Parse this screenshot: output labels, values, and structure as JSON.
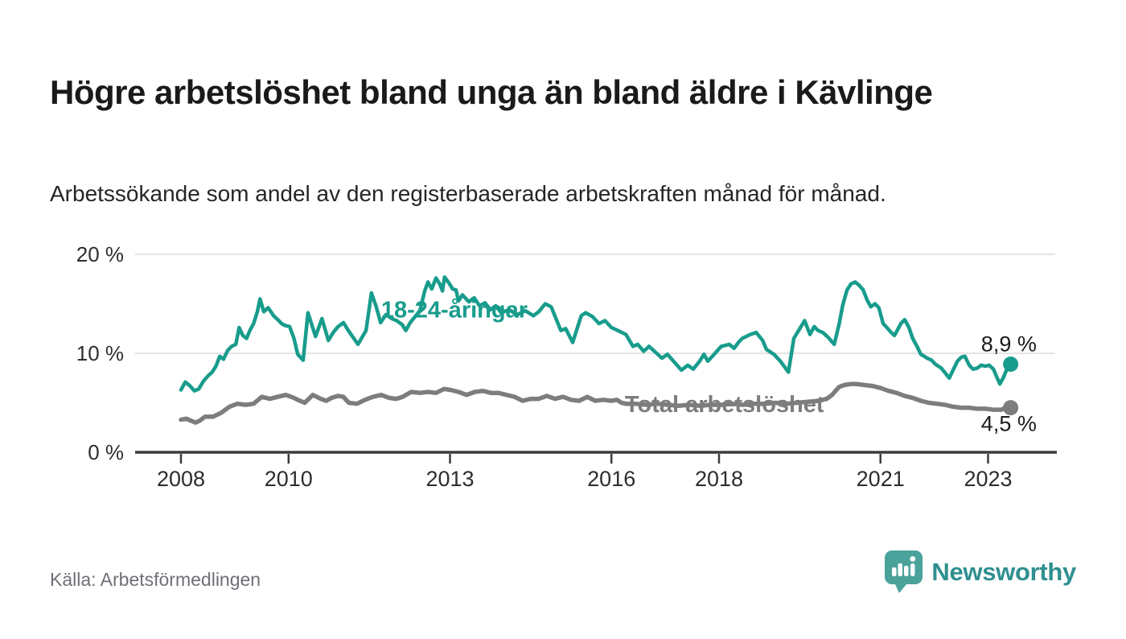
{
  "header": {
    "title": "Högre arbetslöshet bland unga än bland äldre i Kävlinge",
    "subtitle": "Arbetssökande som andel av den registerbaserade arbetskraften månad för månad."
  },
  "footer": {
    "source": "Källa: Arbetsförmedlingen",
    "brand": "Newsworthy"
  },
  "colors": {
    "youth": "#189c8c",
    "total": "#7d7d7d",
    "axis": "#3c3c3c",
    "grid": "#e4e4e4",
    "tick_text": "#2d2d2d",
    "annotation_text": "#1c1c1c",
    "logo_bubble": "#4ba29b",
    "logo_text": "#2f8f8f"
  },
  "chart_data": {
    "type": "line",
    "unit": "%",
    "x_axis": {
      "ticks": [
        {
          "v": 2008,
          "label": "2008"
        },
        {
          "v": 2010,
          "label": "2010"
        },
        {
          "v": 2013,
          "label": "2013"
        },
        {
          "v": 2016,
          "label": "2016"
        },
        {
          "v": 2018,
          "label": "2018"
        },
        {
          "v": 2021,
          "label": "2021"
        },
        {
          "v": 2023,
          "label": "2023"
        }
      ],
      "range": [
        2007.15,
        2024.25
      ]
    },
    "y_axis": {
      "ticks": [
        {
          "v": 0,
          "label": "0 %"
        },
        {
          "v": 10,
          "label": "10 %"
        },
        {
          "v": 20,
          "label": "20 %"
        }
      ],
      "range": [
        0,
        21.5
      ]
    },
    "legend_position": "inline-labels",
    "grid": "horizontal-only",
    "series": [
      {
        "id": "total",
        "name": "Total arbetslöshet",
        "color": "#7d7d7d",
        "stroke_width": 5.5,
        "end_label": "4,5 %",
        "end_value": 4.5,
        "label_pos": {
          "x": 2016.25,
          "y": 4.05
        },
        "end_label_pos": {
          "x": 2022.87,
          "y": 2.15
        },
        "points": [
          [
            2008.0,
            3.3
          ],
          [
            2008.1,
            3.4
          ],
          [
            2008.18,
            3.2
          ],
          [
            2008.27,
            3.0
          ],
          [
            2008.35,
            3.2
          ],
          [
            2008.45,
            3.6
          ],
          [
            2008.6,
            3.6
          ],
          [
            2008.75,
            4.0
          ],
          [
            2008.9,
            4.6
          ],
          [
            2009.05,
            4.9
          ],
          [
            2009.2,
            4.8
          ],
          [
            2009.35,
            4.9
          ],
          [
            2009.5,
            5.6
          ],
          [
            2009.65,
            5.4
          ],
          [
            2009.8,
            5.6
          ],
          [
            2009.95,
            5.8
          ],
          [
            2010.1,
            5.5
          ],
          [
            2010.17,
            5.3
          ],
          [
            2010.3,
            5.0
          ],
          [
            2010.45,
            5.8
          ],
          [
            2010.6,
            5.4
          ],
          [
            2010.7,
            5.2
          ],
          [
            2010.8,
            5.5
          ],
          [
            2010.92,
            5.7
          ],
          [
            2011.02,
            5.6
          ],
          [
            2011.12,
            5.0
          ],
          [
            2011.27,
            4.9
          ],
          [
            2011.42,
            5.3
          ],
          [
            2011.57,
            5.6
          ],
          [
            2011.72,
            5.8
          ],
          [
            2011.87,
            5.5
          ],
          [
            2012.0,
            5.4
          ],
          [
            2012.12,
            5.6
          ],
          [
            2012.28,
            6.1
          ],
          [
            2012.44,
            6.0
          ],
          [
            2012.59,
            6.1
          ],
          [
            2012.74,
            6.0
          ],
          [
            2012.89,
            6.4
          ],
          [
            2013.01,
            6.3
          ],
          [
            2013.16,
            6.1
          ],
          [
            2013.31,
            5.8
          ],
          [
            2013.46,
            6.1
          ],
          [
            2013.61,
            6.2
          ],
          [
            2013.76,
            6.0
          ],
          [
            2013.9,
            6.0
          ],
          [
            2014.05,
            5.8
          ],
          [
            2014.2,
            5.6
          ],
          [
            2014.35,
            5.2
          ],
          [
            2014.5,
            5.4
          ],
          [
            2014.65,
            5.4
          ],
          [
            2014.8,
            5.7
          ],
          [
            2014.95,
            5.4
          ],
          [
            2015.1,
            5.6
          ],
          [
            2015.25,
            5.3
          ],
          [
            2015.4,
            5.2
          ],
          [
            2015.55,
            5.6
          ],
          [
            2015.7,
            5.2
          ],
          [
            2015.85,
            5.3
          ],
          [
            2016.0,
            5.2
          ],
          [
            2016.1,
            5.3
          ],
          [
            2016.19,
            5.0
          ],
          [
            2016.27,
            4.9
          ],
          [
            2016.45,
            4.9
          ],
          [
            2016.65,
            4.8
          ],
          [
            2016.85,
            4.9
          ],
          [
            2017.05,
            4.8
          ],
          [
            2017.25,
            4.7
          ],
          [
            2017.45,
            4.8
          ],
          [
            2017.65,
            4.7
          ],
          [
            2017.85,
            4.8
          ],
          [
            2018.05,
            4.8
          ],
          [
            2018.25,
            4.9
          ],
          [
            2018.45,
            4.8
          ],
          [
            2018.65,
            4.9
          ],
          [
            2018.85,
            4.9
          ],
          [
            2019.05,
            5.0
          ],
          [
            2019.25,
            4.9
          ],
          [
            2019.45,
            5.0
          ],
          [
            2019.65,
            5.1
          ],
          [
            2019.85,
            5.2
          ],
          [
            2020.0,
            5.4
          ],
          [
            2020.1,
            5.8
          ],
          [
            2020.23,
            6.6
          ],
          [
            2020.33,
            6.8
          ],
          [
            2020.45,
            6.9
          ],
          [
            2020.55,
            6.9
          ],
          [
            2020.7,
            6.8
          ],
          [
            2020.85,
            6.7
          ],
          [
            2021.0,
            6.5
          ],
          [
            2021.15,
            6.2
          ],
          [
            2021.3,
            6.0
          ],
          [
            2021.45,
            5.7
          ],
          [
            2021.6,
            5.5
          ],
          [
            2021.75,
            5.2
          ],
          [
            2021.9,
            5.0
          ],
          [
            2022.05,
            4.9
          ],
          [
            2022.2,
            4.8
          ],
          [
            2022.35,
            4.6
          ],
          [
            2022.5,
            4.5
          ],
          [
            2022.65,
            4.5
          ],
          [
            2022.8,
            4.4
          ],
          [
            2022.95,
            4.4
          ],
          [
            2023.1,
            4.3
          ],
          [
            2023.25,
            4.3
          ],
          [
            2023.35,
            4.6
          ],
          [
            2023.42,
            4.5
          ]
        ]
      },
      {
        "id": "youth",
        "name": "18-24-åringar",
        "color": "#189c8c",
        "stroke_width": 4.5,
        "end_label": "8,9 %",
        "end_value": 8.9,
        "label_pos": {
          "x": 2011.72,
          "y": 13.6
        },
        "end_label_pos": {
          "x": 2022.87,
          "y": 10.2
        },
        "points": [
          [
            2008.0,
            6.3
          ],
          [
            2008.08,
            7.1
          ],
          [
            2008.17,
            6.7
          ],
          [
            2008.25,
            6.2
          ],
          [
            2008.33,
            6.4
          ],
          [
            2008.42,
            7.2
          ],
          [
            2008.5,
            7.7
          ],
          [
            2008.58,
            8.1
          ],
          [
            2008.65,
            8.7
          ],
          [
            2008.72,
            9.7
          ],
          [
            2008.79,
            9.4
          ],
          [
            2008.87,
            10.3
          ],
          [
            2008.94,
            10.7
          ],
          [
            2009.02,
            10.9
          ],
          [
            2009.08,
            12.6
          ],
          [
            2009.15,
            11.8
          ],
          [
            2009.22,
            11.5
          ],
          [
            2009.28,
            12.3
          ],
          [
            2009.35,
            13.0
          ],
          [
            2009.42,
            14.2
          ],
          [
            2009.47,
            15.5
          ],
          [
            2009.54,
            14.2
          ],
          [
            2009.62,
            14.6
          ],
          [
            2009.72,
            13.8
          ],
          [
            2009.8,
            13.4
          ],
          [
            2009.87,
            13.0
          ],
          [
            2009.94,
            12.8
          ],
          [
            2010.02,
            12.7
          ],
          [
            2010.1,
            11.5
          ],
          [
            2010.17,
            9.9
          ],
          [
            2010.27,
            9.3
          ],
          [
            2010.36,
            14.1
          ],
          [
            2010.5,
            11.7
          ],
          [
            2010.62,
            13.5
          ],
          [
            2010.74,
            11.3
          ],
          [
            2010.83,
            12.1
          ],
          [
            2010.92,
            12.7
          ],
          [
            2011.02,
            13.1
          ],
          [
            2011.11,
            12.3
          ],
          [
            2011.29,
            10.9
          ],
          [
            2011.44,
            12.3
          ],
          [
            2011.54,
            16.1
          ],
          [
            2011.63,
            14.7
          ],
          [
            2011.71,
            13.1
          ],
          [
            2011.81,
            13.9
          ],
          [
            2011.92,
            13.5
          ],
          [
            2012.01,
            13.3
          ],
          [
            2012.11,
            12.9
          ],
          [
            2012.18,
            12.3
          ],
          [
            2012.26,
            13.1
          ],
          [
            2012.35,
            13.7
          ],
          [
            2012.44,
            14.3
          ],
          [
            2012.53,
            16.3
          ],
          [
            2012.59,
            17.2
          ],
          [
            2012.66,
            16.5
          ],
          [
            2012.74,
            17.6
          ],
          [
            2012.81,
            17.0
          ],
          [
            2012.86,
            16.3
          ],
          [
            2012.9,
            17.7
          ],
          [
            2012.98,
            17.1
          ],
          [
            2013.05,
            16.5
          ],
          [
            2013.11,
            16.4
          ],
          [
            2013.16,
            15.3
          ],
          [
            2013.23,
            15.9
          ],
          [
            2013.35,
            15.2
          ],
          [
            2013.45,
            15.6
          ],
          [
            2013.55,
            14.8
          ],
          [
            2013.65,
            15.1
          ],
          [
            2013.75,
            14.4
          ],
          [
            2013.85,
            14.8
          ],
          [
            2013.95,
            14.1
          ],
          [
            2014.1,
            14.4
          ],
          [
            2014.25,
            13.9
          ],
          [
            2014.4,
            14.3
          ],
          [
            2014.55,
            13.8
          ],
          [
            2014.65,
            14.2
          ],
          [
            2014.77,
            15.0
          ],
          [
            2014.88,
            14.7
          ],
          [
            2015.06,
            12.3
          ],
          [
            2015.15,
            12.5
          ],
          [
            2015.28,
            11.1
          ],
          [
            2015.44,
            13.8
          ],
          [
            2015.52,
            14.1
          ],
          [
            2015.65,
            13.7
          ],
          [
            2015.77,
            13.0
          ],
          [
            2015.88,
            13.3
          ],
          [
            2016.0,
            12.6
          ],
          [
            2016.12,
            12.3
          ],
          [
            2016.27,
            11.9
          ],
          [
            2016.4,
            10.7
          ],
          [
            2016.49,
            10.9
          ],
          [
            2016.6,
            10.2
          ],
          [
            2016.7,
            10.7
          ],
          [
            2016.94,
            9.5
          ],
          [
            2017.04,
            9.9
          ],
          [
            2017.3,
            8.3
          ],
          [
            2017.42,
            8.8
          ],
          [
            2017.52,
            8.4
          ],
          [
            2017.64,
            9.2
          ],
          [
            2017.72,
            9.9
          ],
          [
            2017.79,
            9.2
          ],
          [
            2017.91,
            9.9
          ],
          [
            2018.04,
            10.7
          ],
          [
            2018.19,
            10.9
          ],
          [
            2018.28,
            10.5
          ],
          [
            2018.36,
            11.1
          ],
          [
            2018.43,
            11.5
          ],
          [
            2018.58,
            11.9
          ],
          [
            2018.69,
            12.1
          ],
          [
            2018.81,
            11.3
          ],
          [
            2018.88,
            10.4
          ],
          [
            2019.02,
            9.9
          ],
          [
            2019.14,
            9.2
          ],
          [
            2019.29,
            8.1
          ],
          [
            2019.39,
            11.5
          ],
          [
            2019.48,
            12.3
          ],
          [
            2019.59,
            13.3
          ],
          [
            2019.69,
            11.9
          ],
          [
            2019.77,
            12.7
          ],
          [
            2019.84,
            12.3
          ],
          [
            2019.93,
            12.1
          ],
          [
            2020.03,
            11.6
          ],
          [
            2020.14,
            10.9
          ],
          [
            2020.23,
            12.9
          ],
          [
            2020.3,
            14.9
          ],
          [
            2020.38,
            16.4
          ],
          [
            2020.45,
            17.0
          ],
          [
            2020.53,
            17.2
          ],
          [
            2020.6,
            16.9
          ],
          [
            2020.68,
            16.4
          ],
          [
            2020.75,
            15.4
          ],
          [
            2020.82,
            14.7
          ],
          [
            2020.9,
            15.0
          ],
          [
            2020.97,
            14.6
          ],
          [
            2021.05,
            13.0
          ],
          [
            2021.12,
            12.6
          ],
          [
            2021.2,
            12.1
          ],
          [
            2021.26,
            11.8
          ],
          [
            2021.38,
            13.0
          ],
          [
            2021.45,
            13.4
          ],
          [
            2021.53,
            12.6
          ],
          [
            2021.6,
            11.5
          ],
          [
            2021.68,
            10.7
          ],
          [
            2021.75,
            9.9
          ],
          [
            2021.87,
            9.5
          ],
          [
            2021.95,
            9.3
          ],
          [
            2022.02,
            8.9
          ],
          [
            2022.13,
            8.5
          ],
          [
            2022.28,
            7.5
          ],
          [
            2022.35,
            8.3
          ],
          [
            2022.43,
            9.2
          ],
          [
            2022.5,
            9.6
          ],
          [
            2022.57,
            9.7
          ],
          [
            2022.65,
            8.8
          ],
          [
            2022.72,
            8.4
          ],
          [
            2022.8,
            8.5
          ],
          [
            2022.87,
            8.8
          ],
          [
            2022.95,
            8.7
          ],
          [
            2023.02,
            8.8
          ],
          [
            2023.1,
            8.4
          ],
          [
            2023.17,
            7.5
          ],
          [
            2023.22,
            6.9
          ],
          [
            2023.29,
            7.6
          ],
          [
            2023.37,
            8.7
          ],
          [
            2023.42,
            8.9
          ]
        ]
      }
    ]
  }
}
